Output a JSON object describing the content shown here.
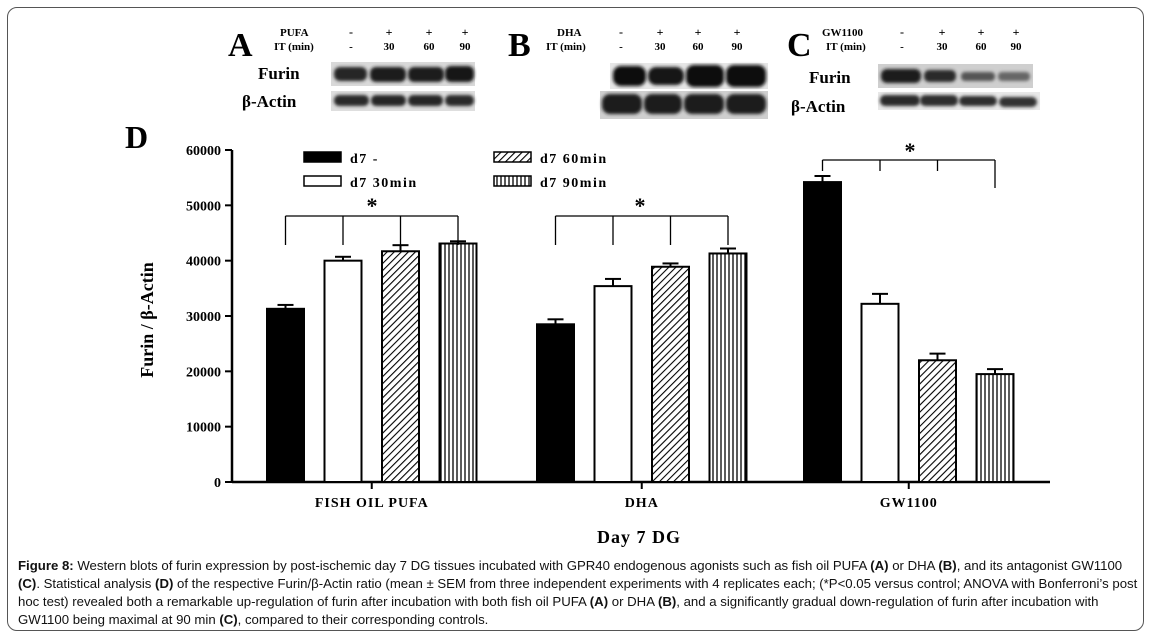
{
  "blots": {
    "A": {
      "letter": "A",
      "treatment": "PUFA",
      "it_label": "IT (min)",
      "treat_vals": [
        "-",
        "+",
        "+",
        "+"
      ],
      "it_vals": [
        "-",
        "30",
        "60",
        "90"
      ],
      "rows": [
        "Furin",
        "β-Actin"
      ]
    },
    "B": {
      "letter": "B",
      "treatment": "DHA",
      "it_label": "IT (min)",
      "treat_vals": [
        "-",
        "+",
        "+",
        "+"
      ],
      "it_vals": [
        "-",
        "30",
        "60",
        "90"
      ]
    },
    "C": {
      "letter": "C",
      "treatment": "GW1100",
      "it_label": "IT (min)",
      "treat_vals": [
        "-",
        "+",
        "+",
        "+"
      ],
      "it_vals": [
        "-",
        "30",
        "60",
        "90"
      ],
      "rows": [
        "Furin",
        "β-Actin"
      ]
    }
  },
  "chart_data": {
    "type": "bar",
    "panel_letter": "D",
    "categories": [
      "FISH OIL PUFA",
      "DHA",
      "GW1100"
    ],
    "series": [
      {
        "name": "d7 -",
        "values": [
          31300,
          28500,
          54200
        ],
        "errors": [
          700,
          900,
          1100
        ],
        "pattern": "solid"
      },
      {
        "name": "d7 30min",
        "values": [
          40000,
          35400,
          32200
        ],
        "errors": [
          700,
          1300,
          1800
        ],
        "pattern": "open"
      },
      {
        "name": "d7 60min",
        "values": [
          41700,
          38900,
          22000
        ],
        "errors": [
          1100,
          600,
          1200
        ],
        "pattern": "diagonal"
      },
      {
        "name": "d7 90min",
        "values": [
          43100,
          41300,
          19500
        ],
        "errors": [
          400,
          900,
          900
        ],
        "pattern": "vertical"
      }
    ],
    "ylabel": "Furin / β-Actin",
    "xlabel": "Day 7 DG",
    "ylim": [
      0,
      60000
    ],
    "yticks": [
      "0",
      "10000",
      "20000",
      "30000",
      "40000",
      "50000",
      "60000"
    ],
    "significance": [
      "*",
      "*",
      "*"
    ],
    "legend_position": "top-left"
  },
  "caption": {
    "segments": [
      {
        "t": "Figure 8:",
        "b": true
      },
      {
        "t": " Western blots of furin expression by post-ischemic day 7 DG tissues incubated with GPR40 endogenous agonists such as fish oil PUFA ",
        "b": false
      },
      {
        "t": "(A)",
        "b": true
      },
      {
        "t": " or DHA ",
        "b": false
      },
      {
        "t": "(B)",
        "b": true
      },
      {
        "t": ", and its antagonist GW1100 ",
        "b": false
      },
      {
        "t": "(C)",
        "b": true
      },
      {
        "t": ". Statistical analysis ",
        "b": false
      },
      {
        "t": "(D)",
        "b": true
      },
      {
        "t": " of the respective Furin/β-Actin ratio (mean ± SEM from three independent experiments with 4 replicates each; (*P<0.05 versus control; ANOVA with Bonferroni’s post hoc test) revealed both a remarkable up-regulation of furin after incubation with both fish oil PUFA ",
        "b": false
      },
      {
        "t": "(A)",
        "b": true
      },
      {
        "t": " or DHA ",
        "b": false
      },
      {
        "t": "(B)",
        "b": true
      },
      {
        "t": ", and a significantly gradual down-regulation of furin after incubation with GW1100 being maximal at 90 min ",
        "b": false
      },
      {
        "t": "(C)",
        "b": true
      },
      {
        "t": ", compared to their corresponding controls.",
        "b": false
      }
    ]
  }
}
